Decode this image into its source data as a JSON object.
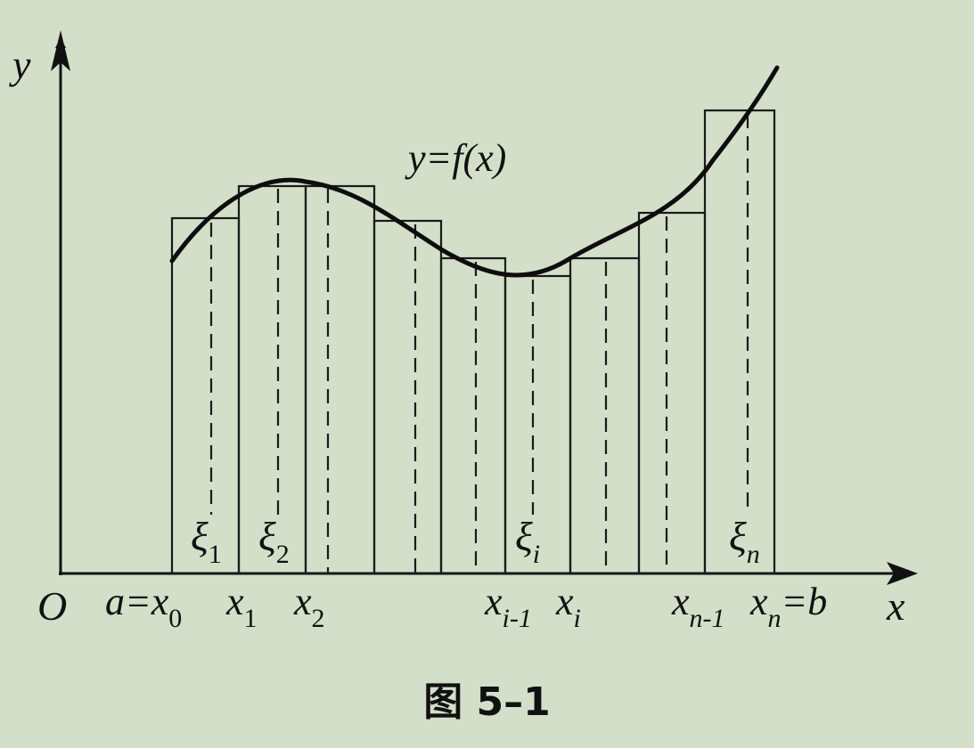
{
  "figure": {
    "function_label": "y=f(x)",
    "origin_label": "O",
    "x_axis_label": "x",
    "y_axis_label": "y",
    "caption": "图 5–1",
    "tick_labels": [
      {
        "pre": "a=",
        "base": "x",
        "sub": "0",
        "post": ""
      },
      {
        "pre": "",
        "base": "x",
        "sub": "1",
        "post": ""
      },
      {
        "pre": "",
        "base": "x",
        "sub": "2",
        "post": ""
      },
      {
        "pre": "",
        "base": "x",
        "sub": "i-1",
        "post": ""
      },
      {
        "pre": "",
        "base": "x",
        "sub": "i",
        "post": ""
      },
      {
        "pre": "",
        "base": "x",
        "sub": "n-1",
        "post": ""
      },
      {
        "pre": "",
        "base": "x",
        "sub": "n",
        "post": "=b"
      }
    ],
    "xi_labels": [
      {
        "base": "ξ",
        "sub": "1"
      },
      {
        "base": "ξ",
        "sub": "2"
      },
      {
        "base": "ξ",
        "sub": "i"
      },
      {
        "base": "ξ",
        "sub": "n"
      }
    ]
  }
}
